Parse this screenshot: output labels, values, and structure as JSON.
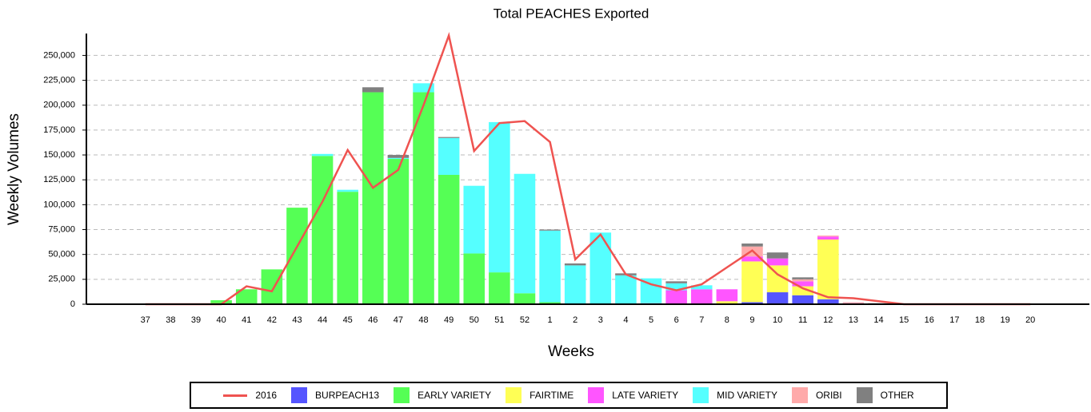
{
  "chart_data": {
    "type": "bar",
    "stacked": true,
    "title": "Total PEACHES Exported",
    "x_label": "Weeks",
    "y_label": "Weekly Volumes",
    "categories": [
      "37",
      "38",
      "39",
      "40",
      "41",
      "42",
      "43",
      "44",
      "45",
      "46",
      "47",
      "48",
      "49",
      "50",
      "51",
      "52",
      "1",
      "2",
      "3",
      "4",
      "5",
      "6",
      "7",
      "8",
      "9",
      "10",
      "11",
      "12",
      "13",
      "14",
      "15",
      "16",
      "17",
      "18",
      "19",
      "20"
    ],
    "ylim": [
      0,
      272000
    ],
    "yticks": [
      0,
      {
        "value": 25000,
        "label": "25,000"
      },
      {
        "value": 50000,
        "label": "50,000"
      },
      {
        "value": 75000,
        "label": "75,000"
      },
      {
        "value": 100000,
        "label": "100,000"
      },
      {
        "value": 125000,
        "label": "125,000"
      },
      {
        "value": 150000,
        "label": "150,000"
      },
      {
        "value": 175000,
        "label": "175,000"
      },
      {
        "value": 200000,
        "label": "200,000"
      },
      {
        "value": 225000,
        "label": "225,000"
      },
      {
        "value": 250000,
        "label": "250,000"
      }
    ],
    "grid": true,
    "series": [
      {
        "name": "2016",
        "type": "line",
        "color": "#ef5350",
        "values": [
          0,
          0,
          0,
          0,
          18000,
          13000,
          58000,
          103000,
          155000,
          117000,
          135000,
          200000,
          270000,
          154000,
          182000,
          184000,
          163000,
          45000,
          70000,
          30000,
          20000,
          14000,
          20000,
          37000,
          54000,
          30000,
          16000,
          7000,
          6000,
          3000,
          0,
          0,
          0,
          0,
          0,
          0
        ]
      },
      {
        "name": "BURPEACH13",
        "color": "#5555ff",
        "values": [
          0,
          0,
          0,
          0,
          0,
          0,
          0,
          0,
          0,
          0,
          0,
          0,
          0,
          0,
          0,
          0,
          0,
          0,
          0,
          0,
          0,
          0,
          0,
          0,
          2000,
          12000,
          9000,
          5000,
          0,
          0,
          0,
          0,
          0,
          0,
          0,
          0
        ]
      },
      {
        "name": "EARLY VARIETY",
        "color": "#55ff55",
        "values": [
          0,
          0,
          0,
          4000,
          15000,
          35000,
          97000,
          149000,
          113000,
          213000,
          146000,
          213000,
          130000,
          51000,
          32000,
          11000,
          2000,
          0,
          0,
          0,
          0,
          0,
          0,
          0,
          0,
          0,
          0,
          0,
          0,
          0,
          0,
          0,
          0,
          0,
          0,
          0
        ]
      },
      {
        "name": "FAIRTIME",
        "color": "#ffff55",
        "values": [
          0,
          0,
          0,
          0,
          0,
          0,
          0,
          0,
          0,
          0,
          0,
          0,
          0,
          0,
          0,
          0,
          0,
          0,
          0,
          0,
          0,
          0,
          0,
          3000,
          41000,
          27000,
          9000,
          60000,
          0,
          0,
          0,
          0,
          0,
          0,
          0,
          0
        ]
      },
      {
        "name": "LATE VARIETY",
        "color": "#ff55ff",
        "values": [
          0,
          0,
          0,
          0,
          0,
          0,
          0,
          0,
          0,
          0,
          0,
          0,
          0,
          0,
          0,
          0,
          0,
          0,
          0,
          0,
          1000,
          14000,
          15000,
          12000,
          5000,
          7000,
          5000,
          3000,
          1000,
          0,
          0,
          0,
          0,
          0,
          0,
          0
        ]
      },
      {
        "name": "MID VARIETY",
        "color": "#55ffff",
        "values": [
          0,
          0,
          0,
          0,
          0,
          0,
          0,
          2000,
          2000,
          0,
          1000,
          9000,
          37000,
          68000,
          151000,
          120000,
          72000,
          39000,
          72000,
          29000,
          25000,
          7000,
          4000,
          0,
          0,
          0,
          0,
          0,
          0,
          0,
          0,
          0,
          0,
          0,
          0,
          0
        ]
      },
      {
        "name": "ORIBI",
        "color": "#ffaaaa",
        "values": [
          0,
          0,
          0,
          0,
          0,
          0,
          0,
          0,
          0,
          0,
          0,
          0,
          0,
          0,
          0,
          0,
          0,
          0,
          0,
          0,
          0,
          0,
          0,
          0,
          10000,
          0,
          2000,
          1000,
          1000,
          0,
          0,
          0,
          0,
          0,
          0,
          0
        ]
      },
      {
        "name": "OTHER",
        "color": "#808080",
        "values": [
          0,
          0,
          0,
          0,
          0,
          0,
          0,
          0,
          0,
          5000,
          3000,
          0,
          1000,
          0,
          0,
          0,
          1000,
          2000,
          0,
          2000,
          0,
          2000,
          0,
          0,
          3000,
          6000,
          2000,
          0,
          0,
          1000,
          0,
          0,
          0,
          0,
          0,
          0
        ]
      }
    ]
  }
}
